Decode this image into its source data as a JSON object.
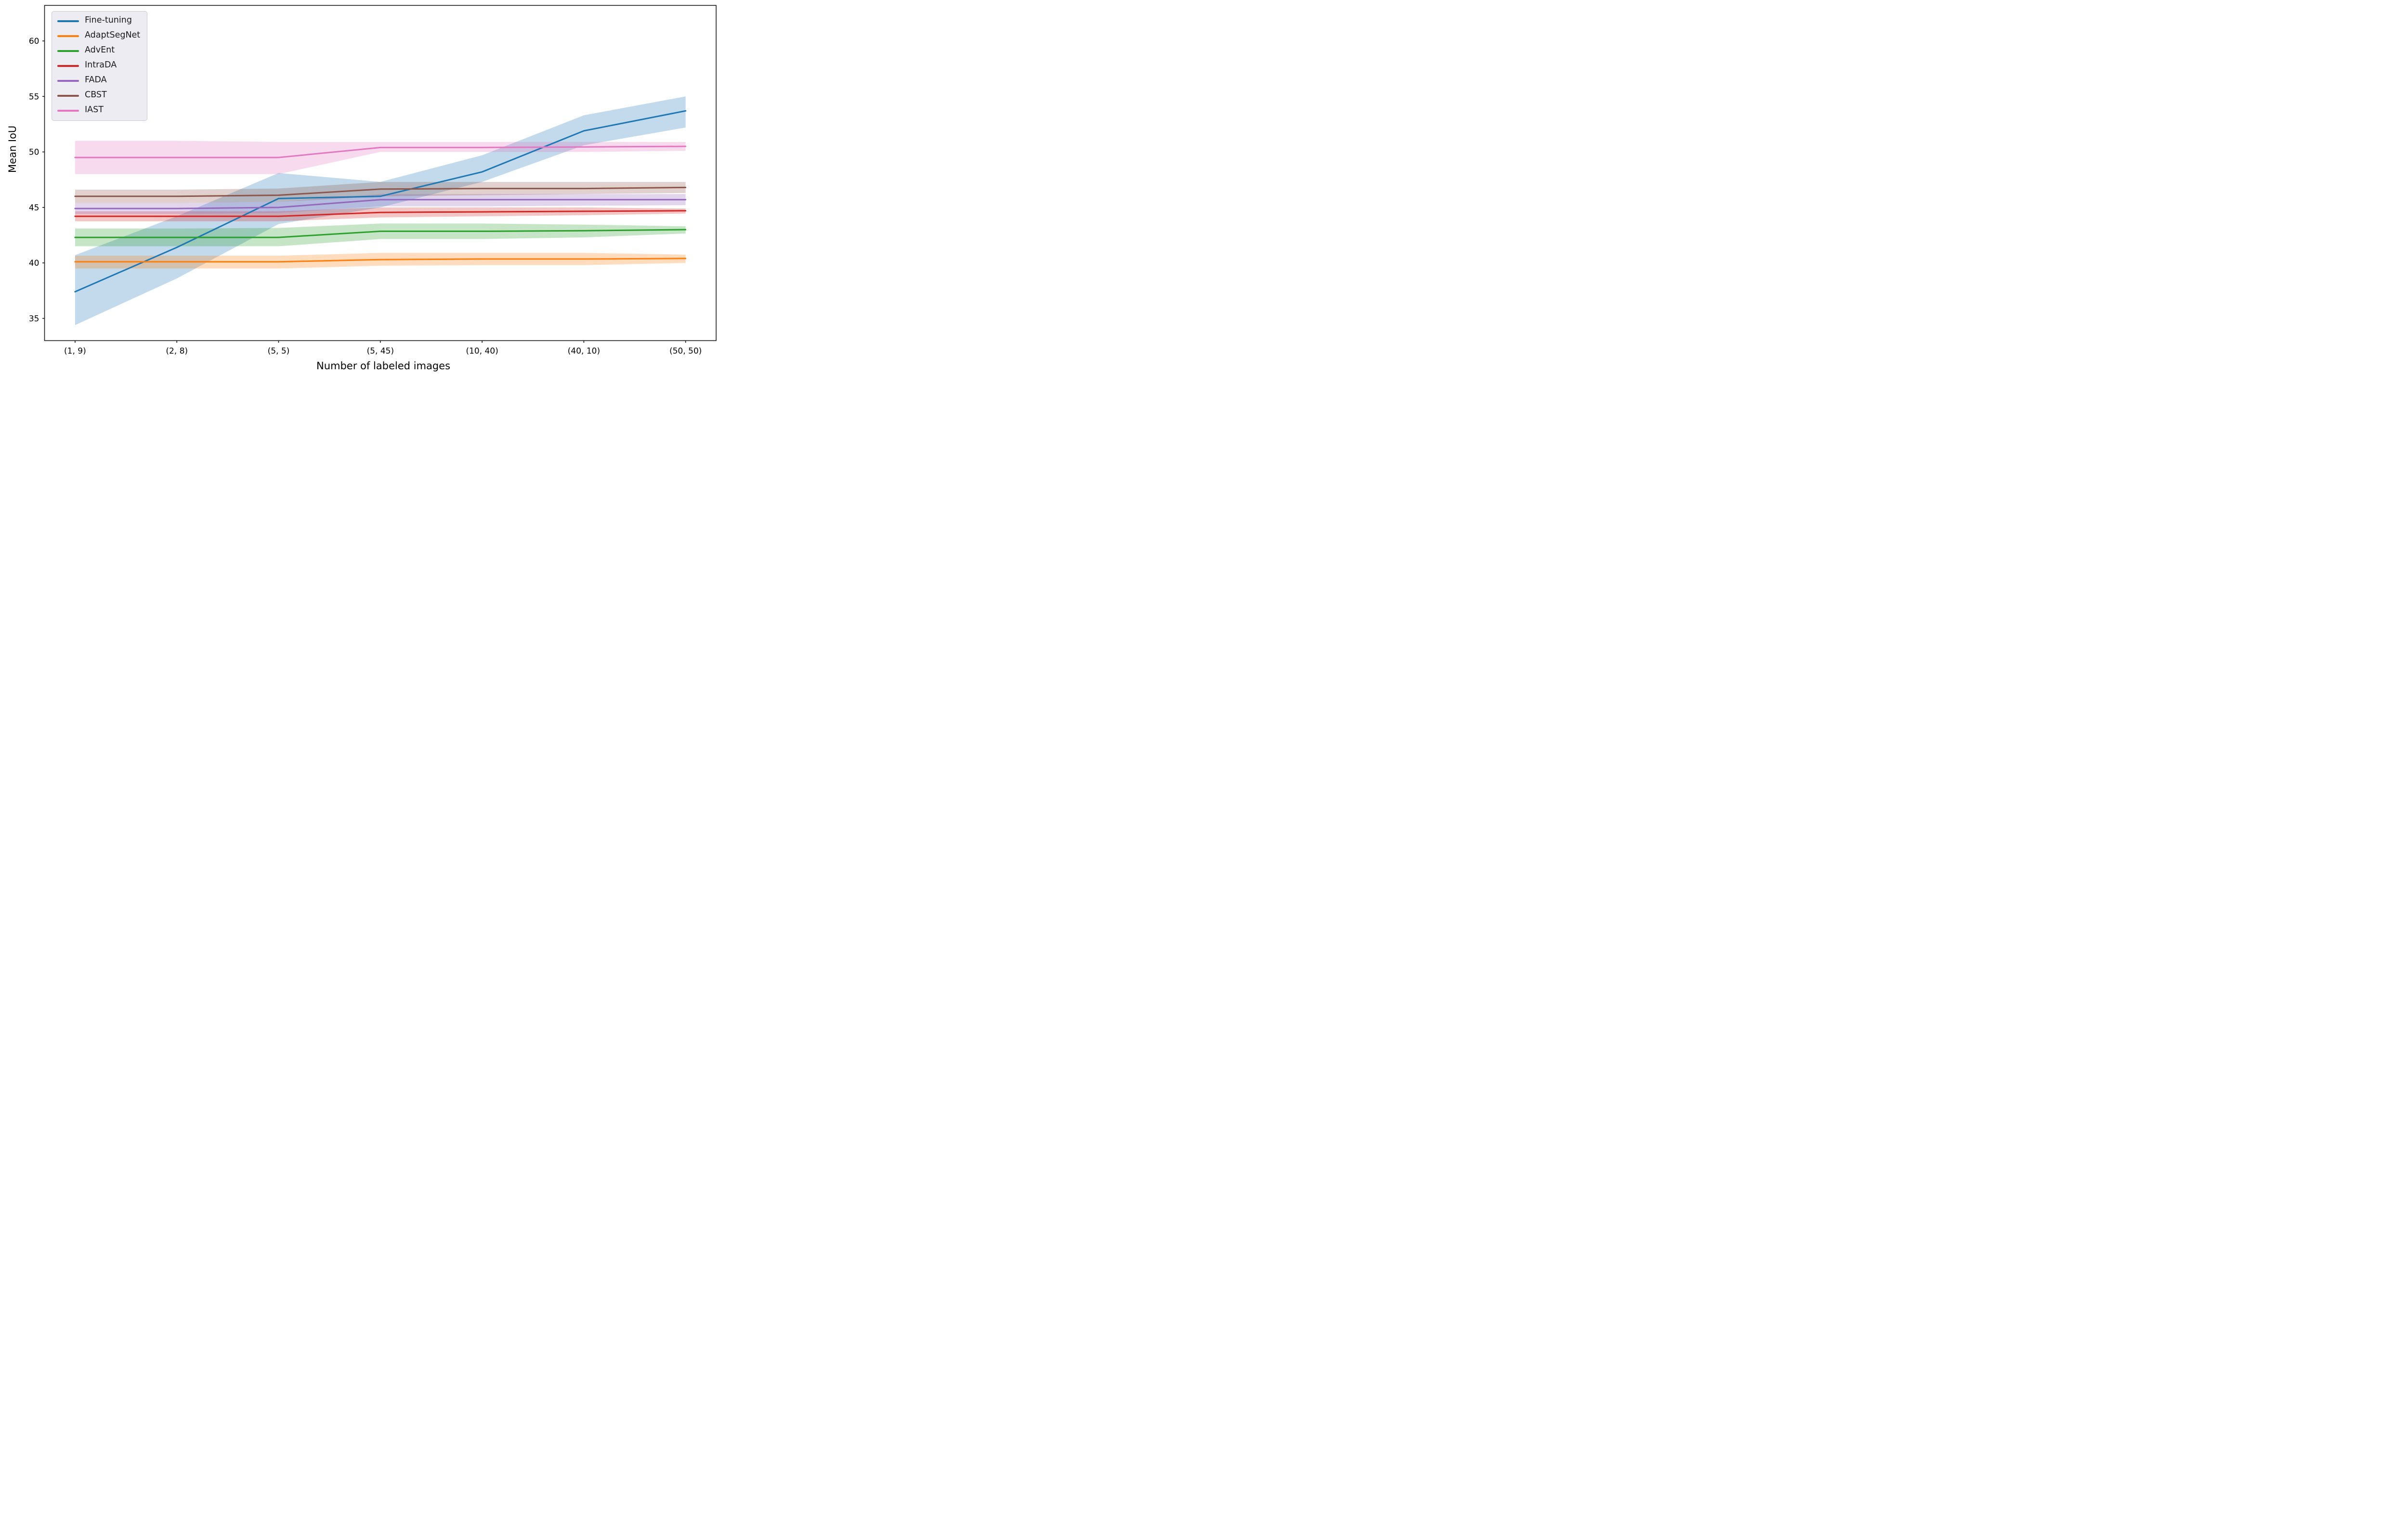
{
  "chart_data": {
    "type": "line",
    "title": "",
    "xlabel": "Number of labeled images",
    "ylabel": "Mean IoU",
    "categories": [
      "(1, 9)",
      "(2, 8)",
      "(5, 5)",
      "(5, 45)",
      "(10, 40)",
      "(40, 10)",
      "(50, 50)"
    ],
    "yticks": [
      35,
      40,
      45,
      50,
      55,
      60
    ],
    "ylim": [
      33.0,
      63.2
    ],
    "grid": false,
    "legend_position": "upper-left",
    "band_opacity": 0.27,
    "series": [
      {
        "name": "Fine-tuning",
        "color": "#1f77b4",
        "values": [
          37.4,
          41.4,
          45.8,
          46.0,
          48.2,
          51.9,
          53.7
        ],
        "band_lo": [
          34.4,
          38.6,
          43.5,
          45.0,
          47.3,
          50.6,
          52.2
        ],
        "band_hi": [
          40.7,
          44.2,
          48.1,
          47.3,
          49.7,
          53.3,
          55.0
        ]
      },
      {
        "name": "AdaptSegNet",
        "color": "#ff7f0e",
        "values": [
          40.1,
          40.1,
          40.1,
          40.3,
          40.35,
          40.35,
          40.4
        ],
        "band_lo": [
          39.5,
          39.5,
          39.5,
          39.75,
          39.8,
          39.8,
          40.0
        ],
        "band_hi": [
          40.65,
          40.65,
          40.65,
          40.9,
          40.9,
          40.9,
          40.75
        ]
      },
      {
        "name": "AdvEnt",
        "color": "#2ca02c",
        "values": [
          42.3,
          42.3,
          42.3,
          42.85,
          42.85,
          42.9,
          43.0
        ],
        "band_lo": [
          41.5,
          41.5,
          41.5,
          42.15,
          42.15,
          42.3,
          42.65
        ],
        "band_hi": [
          43.1,
          43.1,
          43.15,
          43.55,
          43.55,
          43.45,
          43.3
        ]
      },
      {
        "name": "IntraDA",
        "color": "#d62728",
        "values": [
          44.2,
          44.2,
          44.2,
          44.55,
          44.6,
          44.65,
          44.7
        ],
        "band_lo": [
          43.75,
          43.75,
          43.75,
          44.1,
          44.2,
          44.3,
          44.45
        ],
        "band_hi": [
          44.65,
          44.65,
          44.65,
          45.0,
          45.0,
          45.0,
          44.9
        ]
      },
      {
        "name": "FADA",
        "color": "#9467bd",
        "values": [
          44.9,
          44.9,
          45.0,
          45.7,
          45.7,
          45.7,
          45.7
        ],
        "band_lo": [
          44.4,
          44.4,
          44.5,
          45.1,
          45.1,
          45.15,
          45.2
        ],
        "band_hi": [
          45.4,
          45.4,
          45.5,
          46.2,
          46.2,
          46.2,
          46.2
        ]
      },
      {
        "name": "CBST",
        "color": "#8c564b",
        "values": [
          46.0,
          46.0,
          46.1,
          46.65,
          46.7,
          46.7,
          46.8
        ],
        "band_lo": [
          45.4,
          45.4,
          45.5,
          46.0,
          46.1,
          46.2,
          46.3
        ],
        "band_hi": [
          46.6,
          46.6,
          46.7,
          47.3,
          47.3,
          47.3,
          47.3
        ]
      },
      {
        "name": "IAST",
        "color": "#e377c2",
        "values": [
          49.5,
          49.5,
          49.5,
          50.4,
          50.4,
          50.45,
          50.5
        ],
        "band_lo": [
          48.0,
          48.0,
          48.0,
          50.0,
          50.0,
          50.0,
          50.1
        ],
        "band_hi": [
          51.0,
          51.0,
          50.9,
          50.9,
          50.9,
          50.9,
          50.9
        ]
      }
    ]
  },
  "axes": {
    "xlabel": "Number of labeled images",
    "ylabel": "Mean IoU"
  }
}
